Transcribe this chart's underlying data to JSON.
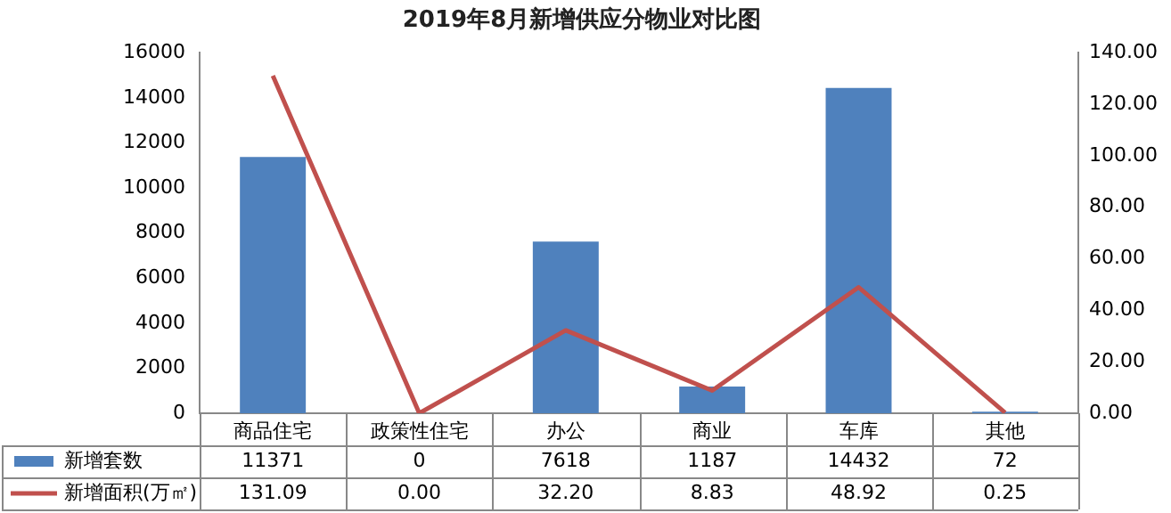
{
  "chart_data": {
    "type": "bar",
    "title": "2019年8月新增供应分物业对比图",
    "categories": [
      "商品住宅",
      "政策性住宅",
      "办公",
      "商业",
      "车库",
      "其他"
    ],
    "series": [
      {
        "name": "新增套数",
        "color": "#4f81bd",
        "values": [
          11371,
          0,
          7618,
          1187,
          14432,
          72
        ],
        "value_labels": [
          "11371",
          "0",
          "7618",
          "1187",
          "14432",
          "72"
        ]
      },
      {
        "name": "新增面积(万㎡)",
        "type": "line",
        "axis": "y2",
        "color": "#c0504d",
        "marker": "none",
        "values": [
          131.09,
          0.0,
          32.2,
          8.83,
          48.92,
          0.25
        ],
        "value_labels": [
          "131.09",
          "0.00",
          "32.20",
          "8.83",
          "48.92",
          "0.25"
        ]
      }
    ],
    "ylim": [
      0,
      16000
    ],
    "yticks": [
      0,
      2000,
      4000,
      6000,
      8000,
      10000,
      12000,
      14000,
      16000
    ],
    "y2lim": [
      0,
      140
    ],
    "y2ticks": [
      {
        "value": 0,
        "label": "0.00"
      },
      {
        "value": 20,
        "label": "20.00"
      },
      {
        "value": 40,
        "label": "40.00"
      },
      {
        "value": 60,
        "label": "60.00"
      },
      {
        "value": 80,
        "label": "80.00"
      },
      {
        "value": 100,
        "label": "100.00"
      },
      {
        "value": 120,
        "label": "120.00"
      },
      {
        "value": 140,
        "label": "140.00"
      }
    ],
    "grid": false,
    "legend": "bottom"
  }
}
